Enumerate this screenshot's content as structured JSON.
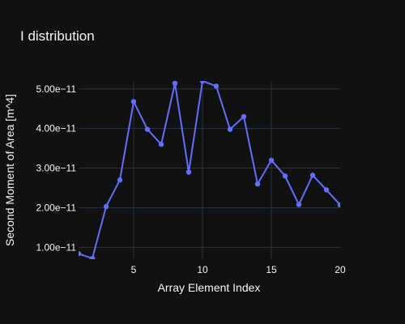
{
  "chart_data": {
    "type": "line",
    "title": "I distribution",
    "xlabel": "Array Element Index",
    "ylabel": "Second Moment of Area [m^4]",
    "xlim": [
      1,
      20
    ],
    "ylim": [
      7e-12,
      5.2e-11
    ],
    "x_ticks": [
      5,
      10,
      15,
      20
    ],
    "x_tick_labels": [
      "5",
      "10",
      "15",
      "20"
    ],
    "y_ticks": [
      1e-11,
      2e-11,
      3e-11,
      4e-11,
      5e-11
    ],
    "y_tick_labels": [
      "1.00e−11",
      "2.00e−11",
      "3.00e−11",
      "4.00e−11",
      "5.00e−11"
    ],
    "grid": true,
    "colors": {
      "background": "#111111",
      "grid": "#283442",
      "series": "#636efa",
      "text": "#f2f5fa"
    },
    "series": [
      {
        "x": [
          1,
          2,
          3,
          4,
          5,
          6,
          7,
          8,
          9,
          10,
          11,
          12,
          13,
          14,
          15,
          16,
          17,
          18,
          19,
          20
        ],
        "y": [
          8.4e-12,
          7.2e-12,
          2.03e-11,
          2.7e-11,
          4.68e-11,
          3.98e-11,
          3.6e-11,
          5.14e-11,
          2.9e-11,
          5.2e-11,
          5.07e-11,
          3.98e-11,
          4.3e-11,
          2.6e-11,
          3.2e-11,
          2.8e-11,
          2.08e-11,
          2.82e-11,
          2.45e-11,
          2.07e-11
        ]
      }
    ]
  }
}
